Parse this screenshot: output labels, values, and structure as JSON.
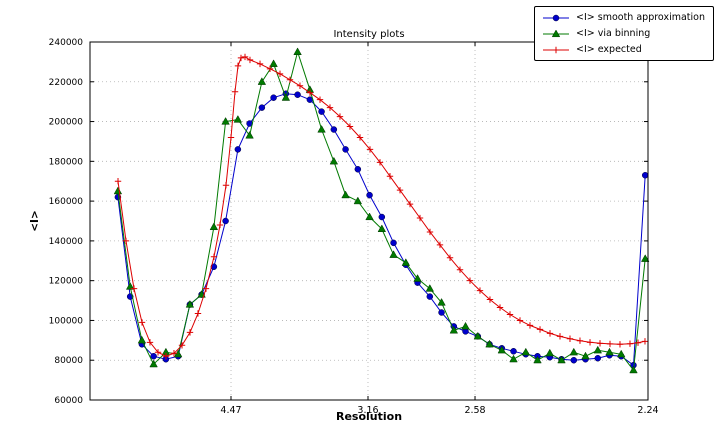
{
  "chart_data": {
    "type": "line",
    "title": "Intensity plots",
    "xlabel": "Resolution",
    "ylabel": "<I>",
    "ylim": [
      60000,
      240000
    ],
    "y_ticks": [
      240000,
      220000,
      200000,
      180000,
      160000,
      140000,
      120000,
      100000,
      80000,
      60000
    ],
    "x_ticks": [
      {
        "label": "4.47",
        "pos": 0.2527
      },
      {
        "label": "3.16",
        "pos": 0.4982
      },
      {
        "label": "2.58",
        "pos": 0.69
      },
      {
        "label": "2.24",
        "pos": 1.0
      }
    ],
    "grid": true,
    "legend_position": "upper right outside plot",
    "series": [
      {
        "name": "<I> smooth approximation",
        "color": "#0000cc",
        "marker": "circle",
        "points": [
          [
            0.05,
            162000
          ],
          [
            0.072,
            112000
          ],
          [
            0.093,
            88000
          ],
          [
            0.114,
            82000
          ],
          [
            0.136,
            80500
          ],
          [
            0.158,
            82000
          ],
          [
            0.179,
            108000
          ],
          [
            0.2,
            113000
          ],
          [
            0.222,
            127000
          ],
          [
            0.243,
            150000
          ],
          [
            0.265,
            186000
          ],
          [
            0.286,
            199000
          ],
          [
            0.308,
            207000
          ],
          [
            0.329,
            212000
          ],
          [
            0.351,
            214000
          ],
          [
            0.372,
            213500
          ],
          [
            0.394,
            211000
          ],
          [
            0.415,
            205000
          ],
          [
            0.437,
            196000
          ],
          [
            0.458,
            186000
          ],
          [
            0.48,
            176000
          ],
          [
            0.501,
            163000
          ],
          [
            0.523,
            152000
          ],
          [
            0.544,
            139000
          ],
          [
            0.566,
            128000
          ],
          [
            0.587,
            119000
          ],
          [
            0.609,
            112000
          ],
          [
            0.63,
            104000
          ],
          [
            0.652,
            97000
          ],
          [
            0.673,
            94500
          ],
          [
            0.695,
            92000
          ],
          [
            0.716,
            88000
          ],
          [
            0.738,
            86000
          ],
          [
            0.759,
            84500
          ],
          [
            0.781,
            83000
          ],
          [
            0.802,
            82000
          ],
          [
            0.824,
            81500
          ],
          [
            0.845,
            80500
          ],
          [
            0.867,
            80000
          ],
          [
            0.888,
            80500
          ],
          [
            0.91,
            81000
          ],
          [
            0.931,
            82500
          ],
          [
            0.952,
            82000
          ],
          [
            0.974,
            77500
          ],
          [
            0.995,
            173000
          ]
        ]
      },
      {
        "name": "<I> via binning",
        "color": "#007a00",
        "marker": "triangle",
        "points": [
          [
            0.05,
            165000
          ],
          [
            0.072,
            117000
          ],
          [
            0.093,
            90000
          ],
          [
            0.114,
            78000
          ],
          [
            0.136,
            84000
          ],
          [
            0.158,
            83000
          ],
          [
            0.179,
            108000
          ],
          [
            0.2,
            113000
          ],
          [
            0.222,
            147000
          ],
          [
            0.243,
            200000
          ],
          [
            0.265,
            201000
          ],
          [
            0.286,
            193000
          ],
          [
            0.308,
            220000
          ],
          [
            0.329,
            229000
          ],
          [
            0.351,
            212000
          ],
          [
            0.372,
            235000
          ],
          [
            0.394,
            216000
          ],
          [
            0.415,
            196000
          ],
          [
            0.437,
            180000
          ],
          [
            0.458,
            163000
          ],
          [
            0.48,
            160000
          ],
          [
            0.501,
            152000
          ],
          [
            0.523,
            146000
          ],
          [
            0.544,
            133000
          ],
          [
            0.566,
            129000
          ],
          [
            0.587,
            121000
          ],
          [
            0.609,
            116000
          ],
          [
            0.63,
            109000
          ],
          [
            0.652,
            95000
          ],
          [
            0.673,
            97000
          ],
          [
            0.695,
            92000
          ],
          [
            0.716,
            88000
          ],
          [
            0.738,
            85000
          ],
          [
            0.759,
            80500
          ],
          [
            0.781,
            84000
          ],
          [
            0.802,
            80000
          ],
          [
            0.824,
            83500
          ],
          [
            0.845,
            80000
          ],
          [
            0.867,
            84000
          ],
          [
            0.888,
            82000
          ],
          [
            0.91,
            85000
          ],
          [
            0.931,
            84000
          ],
          [
            0.952,
            83000
          ],
          [
            0.974,
            75000
          ],
          [
            0.995,
            131000
          ]
        ]
      },
      {
        "name": "<I> expected",
        "color": "#dd0000",
        "marker": "plus",
        "points": [
          [
            0.0502,
            170000
          ],
          [
            0.0645,
            140000
          ],
          [
            0.0789,
            116000
          ],
          [
            0.0932,
            99000
          ],
          [
            0.1075,
            89000
          ],
          [
            0.1219,
            84000
          ],
          [
            0.1362,
            82000
          ],
          [
            0.1505,
            83500
          ],
          [
            0.1649,
            87500
          ],
          [
            0.1792,
            94000
          ],
          [
            0.1935,
            103500
          ],
          [
            0.2079,
            116000
          ],
          [
            0.2222,
            132000
          ],
          [
            0.233,
            148000
          ],
          [
            0.2437,
            168000
          ],
          [
            0.2527,
            192000
          ],
          [
            0.2599,
            215000
          ],
          [
            0.2652,
            228000
          ],
          [
            0.2706,
            232000
          ],
          [
            0.2778,
            232500
          ],
          [
            0.2867,
            231000
          ],
          [
            0.3047,
            229000
          ],
          [
            0.3226,
            226500
          ],
          [
            0.3405,
            224000
          ],
          [
            0.3584,
            221000
          ],
          [
            0.3763,
            218000
          ],
          [
            0.3943,
            214500
          ],
          [
            0.4122,
            211000
          ],
          [
            0.4301,
            207000
          ],
          [
            0.448,
            202500
          ],
          [
            0.4659,
            197500
          ],
          [
            0.4839,
            192000
          ],
          [
            0.5018,
            186000
          ],
          [
            0.5197,
            179500
          ],
          [
            0.5376,
            172500
          ],
          [
            0.5556,
            165500
          ],
          [
            0.5735,
            158500
          ],
          [
            0.5914,
            151500
          ],
          [
            0.6093,
            144500
          ],
          [
            0.6272,
            138000
          ],
          [
            0.6452,
            131500
          ],
          [
            0.6631,
            125500
          ],
          [
            0.681,
            120000
          ],
          [
            0.6989,
            115000
          ],
          [
            0.7168,
            110500
          ],
          [
            0.7348,
            106500
          ],
          [
            0.7527,
            103000
          ],
          [
            0.7706,
            100000
          ],
          [
            0.7885,
            97500
          ],
          [
            0.8065,
            95500
          ],
          [
            0.8244,
            93500
          ],
          [
            0.8423,
            92000
          ],
          [
            0.8602,
            90800
          ],
          [
            0.8781,
            89800
          ],
          [
            0.8961,
            89000
          ],
          [
            0.914,
            88500
          ],
          [
            0.9319,
            88200
          ],
          [
            0.9498,
            88000
          ],
          [
            0.9677,
            88300
          ],
          [
            0.9821,
            88800
          ],
          [
            0.9946,
            89500
          ]
        ]
      }
    ]
  }
}
